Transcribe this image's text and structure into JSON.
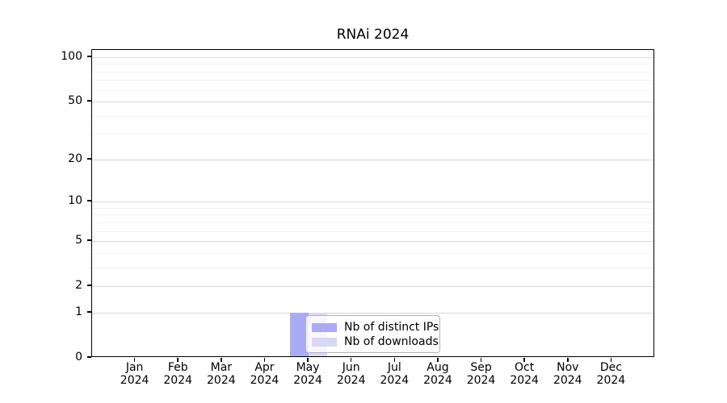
{
  "chart_data": {
    "type": "bar",
    "title": "RNAi 2024",
    "categories": [
      "Jan",
      "Feb",
      "Mar",
      "Apr",
      "May",
      "Jun",
      "Jul",
      "Aug",
      "Sep",
      "Oct",
      "Nov",
      "Dec"
    ],
    "year": "2024",
    "series": [
      {
        "name": "Nb of distinct IPs",
        "color": "#aaaaf5",
        "values": [
          0,
          0,
          0,
          0,
          1,
          0,
          0,
          0,
          0,
          0,
          0,
          0
        ]
      },
      {
        "name": "Nb of downloads",
        "color": "#d8d8f5",
        "values": [
          0,
          0,
          0,
          0,
          1,
          0,
          0,
          0,
          0,
          0,
          0,
          0
        ]
      }
    ],
    "y_axis": {
      "scale": "log10(1+y)",
      "major_ticks": [
        0,
        1,
        2,
        5,
        10,
        20,
        50,
        100
      ],
      "minor_gridlines": [
        3,
        4,
        6,
        7,
        8,
        9,
        30,
        40,
        60,
        70,
        80,
        90
      ],
      "ylim": [
        0,
        112
      ]
    },
    "x_axis": {
      "ticks_per_year": 12
    },
    "grid": {
      "horizontal_major": true,
      "horizontal_minor": true,
      "vertical": false
    },
    "legend": {
      "position": "inside-bottom-center-left"
    },
    "colors": {
      "background": "#ffffff",
      "axis": "#000000",
      "major_grid": "#d9d9d9",
      "minor_grid": "#f2f2f2",
      "distinct_ips_bar": "#aaaaf5",
      "downloads_bar": "#d8d8f5",
      "legend_border": "#b3b3b3"
    }
  }
}
